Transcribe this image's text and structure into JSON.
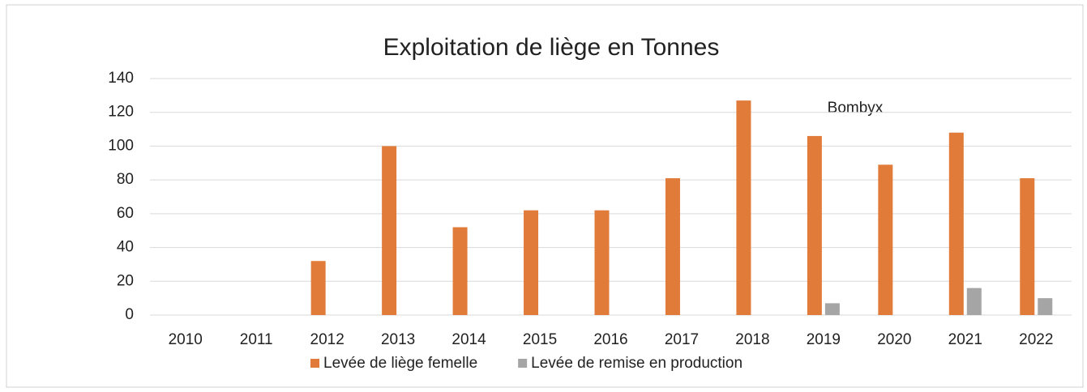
{
  "chart_data": {
    "type": "bar",
    "title": "Exploitation de liège en Tonnes",
    "annotations": [
      "Bombyx"
    ],
    "categories": [
      "2010",
      "2011",
      "2012",
      "2013",
      "2014",
      "2015",
      "2016",
      "2017",
      "2018",
      "2019",
      "2020",
      "2021",
      "2022"
    ],
    "series": [
      {
        "name": "Levée de liège femelle",
        "color": "#e07b39",
        "values": [
          0,
          0,
          32,
          100,
          52,
          62,
          62,
          81,
          127,
          106,
          89,
          108,
          81
        ]
      },
      {
        "name": "Levée de remise en production",
        "color": "#a5a5a5",
        "values": [
          0,
          0,
          0,
          0,
          0,
          0,
          0,
          0,
          0,
          7,
          0,
          16,
          10
        ]
      }
    ],
    "ylim": [
      0,
      140
    ],
    "yticks": [
      0,
      20,
      40,
      60,
      80,
      100,
      120,
      140
    ],
    "grid": true,
    "legend": "bottom"
  }
}
